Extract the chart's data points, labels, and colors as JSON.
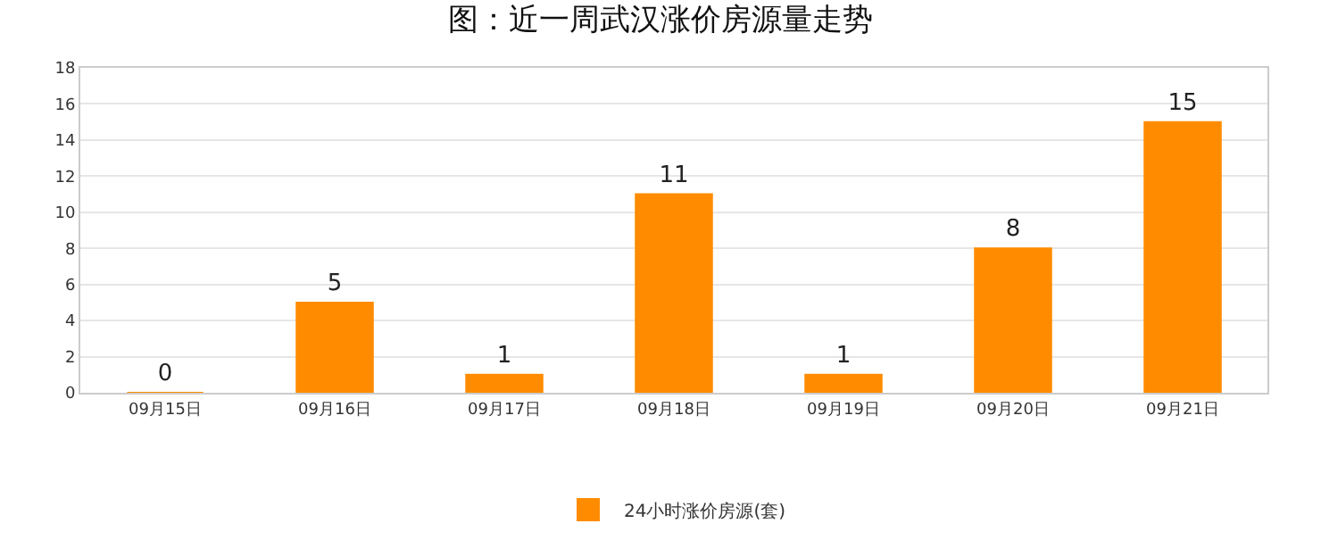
{
  "chart_data": {
    "type": "bar",
    "title": "图：近一周武汉涨价房源量走势",
    "categories": [
      "09月15日",
      "09月16日",
      "09月17日",
      "09月18日",
      "09月19日",
      "09月20日",
      "09月21日"
    ],
    "series": [
      {
        "name": "24小时涨价房源(套)",
        "color": "#ff8c00",
        "values": [
          0,
          5,
          1,
          11,
          1,
          8,
          15
        ]
      }
    ],
    "ylim": [
      0,
      18
    ],
    "yticks": [
      0,
      2,
      4,
      6,
      8,
      10,
      12,
      14,
      16,
      18
    ],
    "grid": "y",
    "legend": "bottom",
    "data_labels": true
  }
}
